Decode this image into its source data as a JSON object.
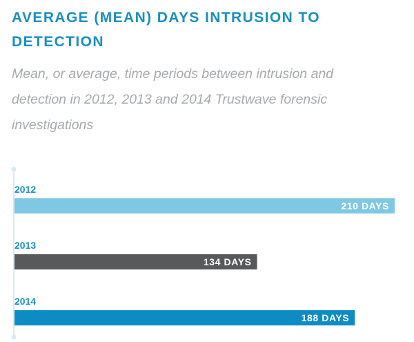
{
  "title": "AVERAGE (MEAN) DAYS INTRUSION TO DETECTION",
  "subtitle": "Mean, or average, time periods between intrusion and detection in 2012, 2013 and 2014 Trustwave forensic investigations",
  "chart_data": {
    "type": "bar",
    "orientation": "horizontal",
    "categories": [
      "2012",
      "2013",
      "2014"
    ],
    "values": [
      210,
      134,
      188
    ],
    "value_labels": [
      "210 DAYS",
      "134 DAYS",
      "188 DAYS"
    ],
    "unit": "DAYS",
    "colors": [
      "#7ec8e3",
      "#58595b",
      "#0d8cc4"
    ],
    "label_color": "#1a8fbf",
    "axis_color": "#d5ebf3",
    "xlim": [
      0,
      210
    ],
    "grid": false,
    "legend": "none"
  }
}
